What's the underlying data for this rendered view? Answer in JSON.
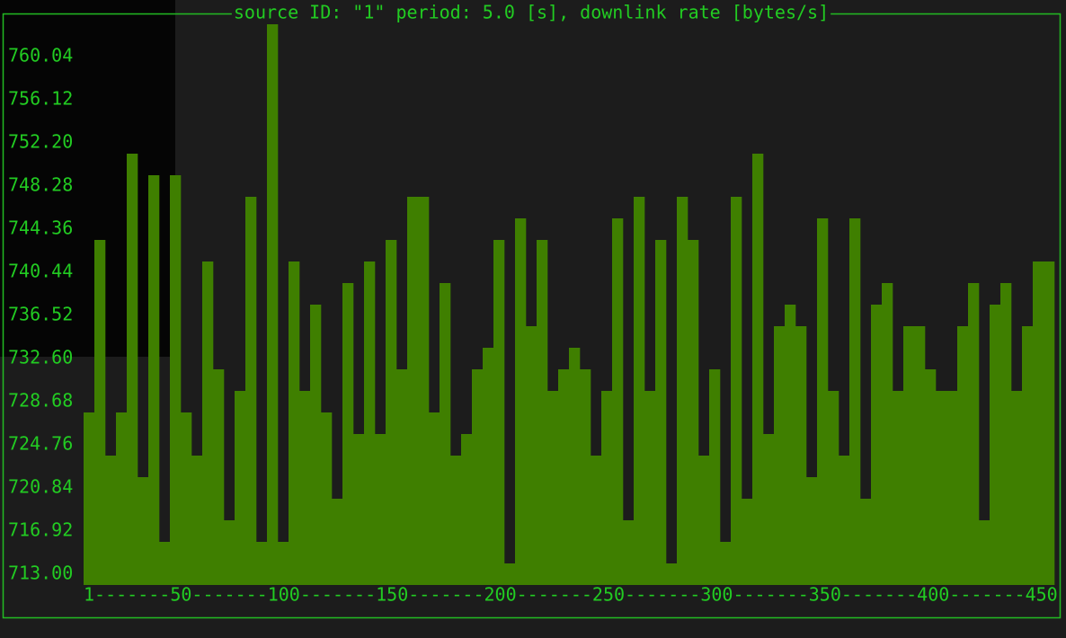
{
  "chart_data": {
    "type": "bar",
    "title": "source ID: \"1\" period: 5.0 [s], downlink rate [bytes/s]",
    "x_axis_label": "1-------50-------100-------150-------200-------250-------300-------350-------400-------450",
    "color": "#3f7f00",
    "ylim": [
      712.02,
      763.96
    ],
    "yticks": [
      {
        "value": 713,
        "label": "713.00"
      },
      {
        "value": 716.92,
        "label": "716.92"
      },
      {
        "value": 720.84,
        "label": "720.84"
      },
      {
        "value": 724.76,
        "label": "724.76"
      },
      {
        "value": 728.68,
        "label": "728.68"
      },
      {
        "value": 732.6,
        "label": "732.60"
      },
      {
        "value": 736.52,
        "label": "736.52"
      },
      {
        "value": 740.44,
        "label": "740.44"
      },
      {
        "value": 744.36,
        "label": "744.36"
      },
      {
        "value": 748.28,
        "label": "748.28"
      },
      {
        "value": 752.2,
        "label": "752.20"
      },
      {
        "value": 756.12,
        "label": "756.12"
      },
      {
        "value": 760.04,
        "label": "760.04"
      }
    ],
    "values": [
      727.7,
      743.38,
      723.78,
      727.7,
      751.22,
      721.82,
      749.26,
      715.94,
      749.26,
      727.7,
      723.78,
      741.42,
      731.62,
      717.9,
      729.66,
      747.3,
      715.94,
      762.98,
      715.94,
      741.42,
      729.66,
      737.5,
      727.7,
      719.86,
      739.46,
      725.74,
      741.42,
      725.74,
      743.38,
      731.62,
      747.3,
      747.3,
      727.7,
      739.46,
      723.78,
      725.74,
      731.62,
      733.58,
      743.38,
      713.98,
      745.34,
      735.54,
      743.38,
      729.66,
      731.62,
      733.58,
      731.62,
      723.78,
      729.66,
      745.34,
      717.9,
      747.3,
      729.66,
      743.38,
      713.98,
      747.3,
      743.38,
      723.78,
      731.62,
      715.94,
      747.3,
      719.86,
      751.22,
      725.74,
      735.54,
      737.5,
      735.54,
      721.82,
      745.34,
      729.66,
      723.78,
      745.34,
      719.86,
      737.5,
      739.46,
      729.66,
      735.54,
      735.54,
      731.62,
      729.66,
      729.66,
      735.54,
      739.46,
      717.9,
      737.5,
      739.46,
      729.66,
      735.54,
      741.42,
      741.42
    ]
  }
}
